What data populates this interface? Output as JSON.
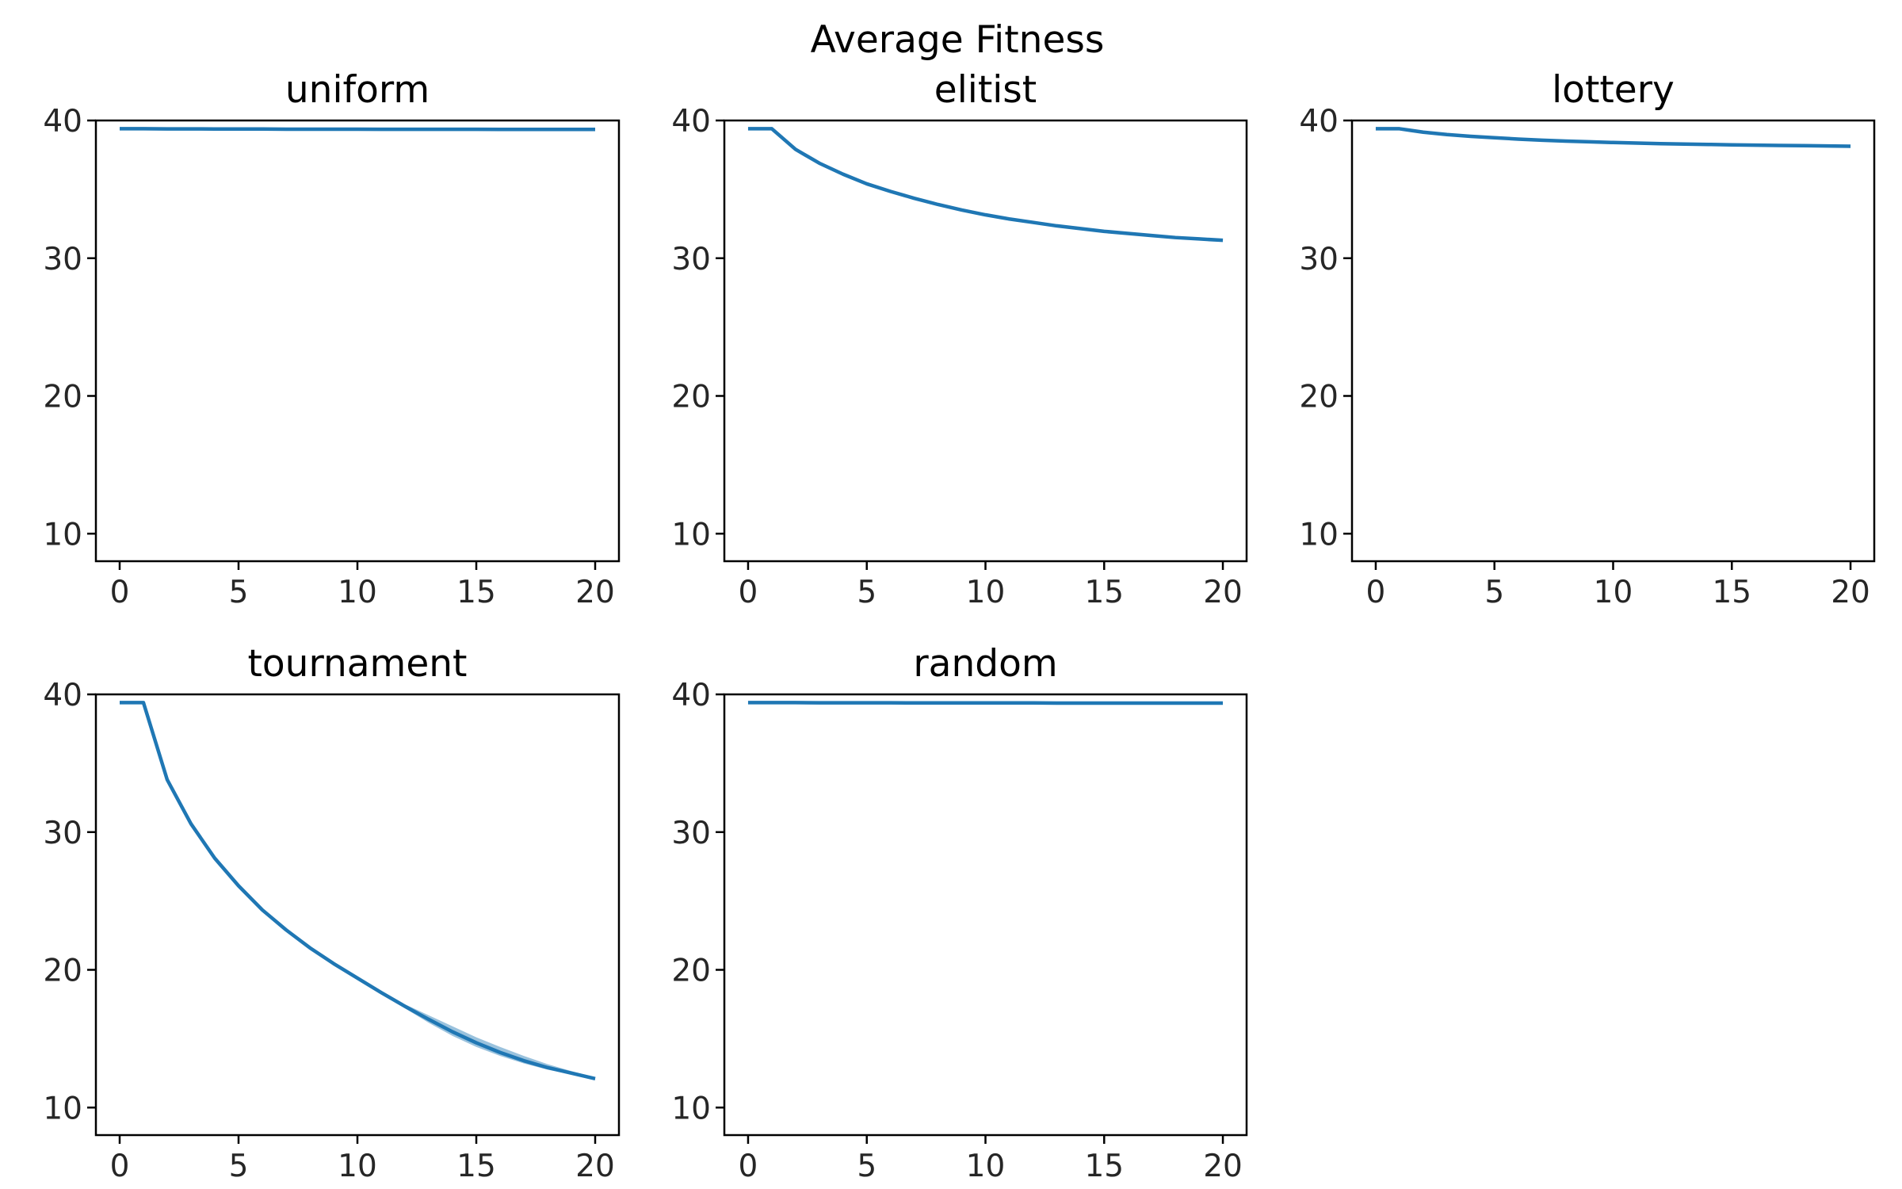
{
  "figure_title": "Average Fitness",
  "colors": {
    "line": "#1f77b4",
    "band": "#1f77b4"
  },
  "chart_data": [
    {
      "type": "line",
      "title": "uniform",
      "xlabel": "",
      "ylabel": "",
      "xlim": [
        -1,
        21
      ],
      "ylim": [
        8,
        40
      ],
      "xticks": [
        0,
        5,
        10,
        15,
        20
      ],
      "yticks": [
        10,
        20,
        30,
        40
      ],
      "grid": false,
      "series": [
        {
          "x": [
            0,
            1,
            2,
            3,
            4,
            5,
            6,
            7,
            8,
            9,
            10,
            11,
            12,
            13,
            14,
            15,
            16,
            17,
            18,
            19,
            20
          ],
          "values": [
            39.4,
            39.4,
            39.39,
            39.39,
            39.38,
            39.38,
            39.38,
            39.37,
            39.37,
            39.37,
            39.37,
            39.36,
            39.36,
            39.36,
            39.36,
            39.36,
            39.35,
            39.35,
            39.35,
            39.35,
            39.35
          ]
        }
      ]
    },
    {
      "type": "line",
      "title": "elitist",
      "xlabel": "",
      "ylabel": "",
      "xlim": [
        -1,
        21
      ],
      "ylim": [
        8,
        40
      ],
      "xticks": [
        0,
        5,
        10,
        15,
        20
      ],
      "yticks": [
        10,
        20,
        30,
        40
      ],
      "grid": false,
      "series": [
        {
          "x": [
            0,
            1,
            2,
            3,
            4,
            5,
            6,
            7,
            8,
            9,
            10,
            11,
            12,
            13,
            14,
            15,
            16,
            17,
            18,
            19,
            20
          ],
          "values": [
            39.4,
            39.4,
            37.9,
            36.9,
            36.1,
            35.4,
            34.85,
            34.35,
            33.9,
            33.5,
            33.15,
            32.85,
            32.6,
            32.35,
            32.15,
            31.95,
            31.8,
            31.65,
            31.5,
            31.4,
            31.3
          ]
        }
      ]
    },
    {
      "type": "line",
      "title": "lottery",
      "xlabel": "",
      "ylabel": "",
      "xlim": [
        -1,
        21
      ],
      "ylim": [
        8,
        40
      ],
      "xticks": [
        0,
        5,
        10,
        15,
        20
      ],
      "yticks": [
        10,
        20,
        30,
        40
      ],
      "grid": false,
      "series": [
        {
          "x": [
            0,
            1,
            2,
            3,
            4,
            5,
            6,
            7,
            8,
            9,
            10,
            11,
            12,
            13,
            14,
            15,
            16,
            17,
            18,
            19,
            20
          ],
          "values": [
            39.4,
            39.4,
            39.15,
            38.98,
            38.85,
            38.75,
            38.65,
            38.57,
            38.5,
            38.45,
            38.4,
            38.36,
            38.32,
            38.29,
            38.26,
            38.23,
            38.21,
            38.19,
            38.17,
            38.15,
            38.13
          ]
        }
      ]
    },
    {
      "type": "line",
      "title": "tournament",
      "xlabel": "",
      "ylabel": "",
      "xlim": [
        -1,
        21
      ],
      "ylim": [
        8,
        40
      ],
      "xticks": [
        0,
        5,
        10,
        15,
        20
      ],
      "yticks": [
        10,
        20,
        30,
        40
      ],
      "grid": false,
      "series": [
        {
          "x": [
            0,
            1,
            2,
            3,
            4,
            5,
            6,
            7,
            8,
            9,
            10,
            11,
            12,
            13,
            14,
            15,
            16,
            17,
            18,
            19,
            20
          ],
          "values": [
            39.4,
            39.4,
            33.8,
            30.6,
            28.1,
            26.1,
            24.35,
            22.9,
            21.6,
            20.45,
            19.4,
            18.35,
            17.35,
            16.4,
            15.5,
            14.7,
            14.0,
            13.4,
            12.9,
            12.5,
            12.1
          ],
          "lower": [
            39.4,
            39.4,
            33.8,
            30.6,
            28.1,
            26.1,
            24.35,
            22.9,
            21.6,
            20.45,
            19.4,
            18.3,
            17.2,
            16.15,
            15.2,
            14.4,
            13.75,
            13.2,
            12.75,
            12.4,
            12.0
          ],
          "upper": [
            39.4,
            39.4,
            33.8,
            30.6,
            28.1,
            26.1,
            24.35,
            22.9,
            21.6,
            20.45,
            19.4,
            18.4,
            17.5,
            16.7,
            15.9,
            15.1,
            14.4,
            13.75,
            13.15,
            12.65,
            12.2
          ]
        }
      ]
    },
    {
      "type": "line",
      "title": "random",
      "xlabel": "",
      "ylabel": "",
      "xlim": [
        -1,
        21
      ],
      "ylim": [
        8,
        40
      ],
      "xticks": [
        0,
        5,
        10,
        15,
        20
      ],
      "yticks": [
        10,
        20,
        30,
        40
      ],
      "grid": false,
      "series": [
        {
          "x": [
            0,
            1,
            2,
            3,
            4,
            5,
            6,
            7,
            8,
            9,
            10,
            11,
            12,
            13,
            14,
            15,
            16,
            17,
            18,
            19,
            20
          ],
          "values": [
            39.4,
            39.4,
            39.4,
            39.39,
            39.39,
            39.39,
            39.39,
            39.38,
            39.38,
            39.38,
            39.38,
            39.38,
            39.38,
            39.37,
            39.37,
            39.37,
            39.37,
            39.37,
            39.37,
            39.37,
            39.37
          ]
        }
      ]
    }
  ]
}
